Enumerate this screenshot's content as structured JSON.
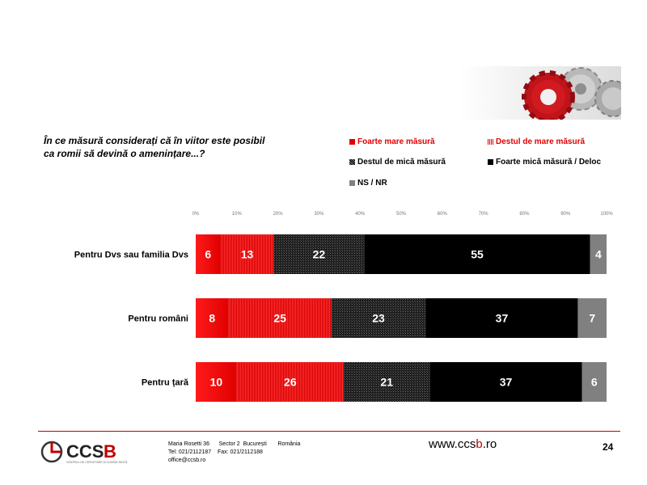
{
  "question": {
    "line1": "În ce măsură considerați că în viitor este posibil",
    "line2": "ca romii să devină o amenințare...?"
  },
  "legend": [
    {
      "label": "Foarte mare măsură",
      "color": "#e00000",
      "style": "solid-red"
    },
    {
      "label": "Destul de mare măsură",
      "color": "#e60000",
      "style": "striped-red"
    },
    {
      "label": "Destul de mică măsură",
      "color": "#222222",
      "style": "hatched-dark"
    },
    {
      "label": "Foarte mică măsură / Deloc",
      "color": "#000000",
      "style": "solid-black"
    },
    {
      "label": "NS / NR",
      "color": "#808080",
      "style": "solid-gray"
    }
  ],
  "chart_data": {
    "type": "bar",
    "orientation": "horizontal",
    "stacked": true,
    "percent_axis_ticks": [
      "0%",
      "10%",
      "20%",
      "30%",
      "40%",
      "50%",
      "60%",
      "70%",
      "80%",
      "90%",
      "100%"
    ],
    "xlim": [
      0,
      100
    ],
    "categories": [
      "Pentru Dvs sau familia Dvs",
      "Pentru români",
      "Pentru țară"
    ],
    "series": [
      {
        "name": "Foarte mare măsură",
        "values": [
          6,
          8,
          10
        ]
      },
      {
        "name": "Destul de mare măsură",
        "values": [
          13,
          25,
          26
        ]
      },
      {
        "name": "Destul de mică măsură",
        "values": [
          22,
          23,
          21
        ]
      },
      {
        "name": "Foarte mică măsură / Deloc",
        "values": [
          55,
          37,
          37
        ]
      },
      {
        "name": "NS / NR",
        "values": [
          4,
          7,
          6
        ]
      }
    ],
    "legend_position": "top-right"
  },
  "footer": {
    "logo_text": "CCSB",
    "logo_subtext": "CENTRUL DE CERCETARE ȘI CONSULTANȚĂ",
    "address_line1": "Maria Rosetti 36      Sector 2  București       România",
    "address_line2": "Tel: 021/2112187    Fax: 021/2112188",
    "address_line3": "office@ccsb.ro",
    "website_pre": "www.ccs",
    "website_b": "b",
    "website_post": ".ro",
    "page_number": "24"
  }
}
